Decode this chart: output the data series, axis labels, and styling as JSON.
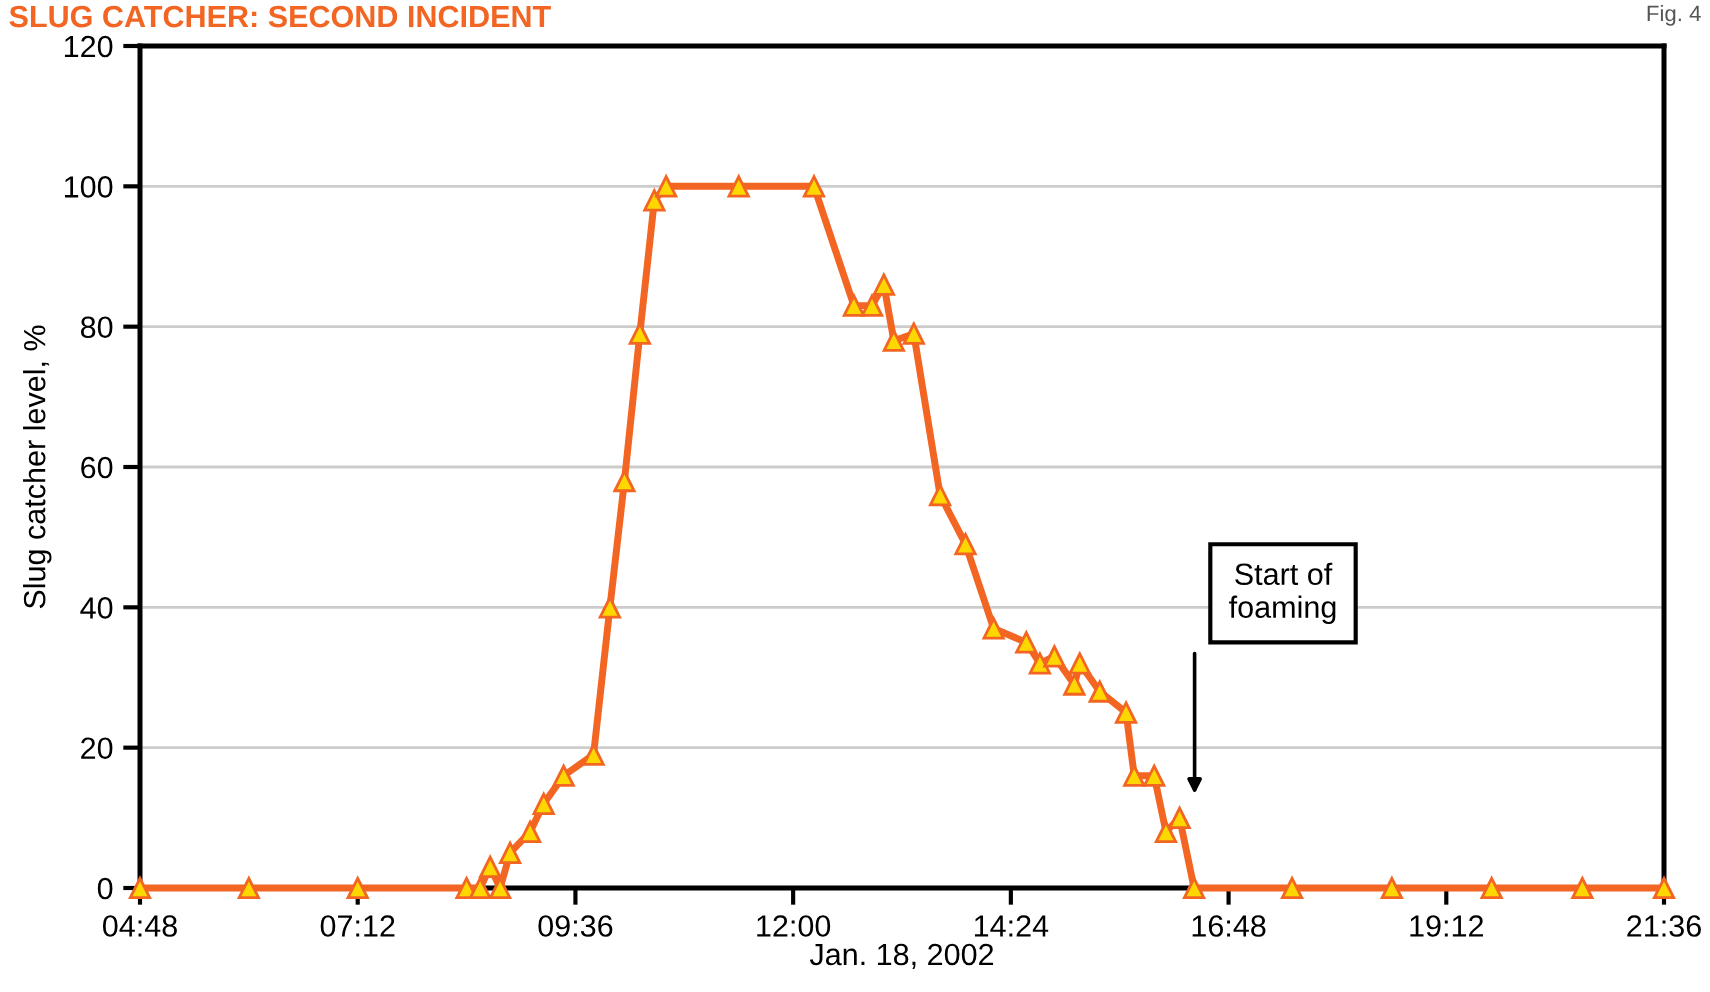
{
  "chart_data": {
    "type": "line",
    "title": "SLUG CATCHER: SECOND INCIDENT",
    "subtitle": "Fig. 4",
    "xlabel": "Jan. 18, 2002",
    "ylabel": "Slug catcher level, %",
    "annotations": [
      "Start of\nfoaming"
    ],
    "series": [
      {
        "color": "#f26522",
        "x": [
          4.8,
          6.0,
          7.2,
          8.4,
          8.55,
          8.66,
          8.77,
          8.88,
          9.1,
          9.25,
          9.47,
          9.8,
          9.98,
          10.14,
          10.31,
          10.47,
          10.6,
          11.4,
          12.23,
          12.67,
          12.87,
          13.0,
          13.11,
          13.33,
          13.62,
          13.9,
          14.21,
          14.57,
          14.72,
          14.88,
          15.1,
          15.16,
          15.38,
          15.67,
          15.76,
          15.98,
          16.11,
          16.26,
          16.42,
          17.5,
          18.6,
          19.7,
          20.7,
          21.6
        ],
        "values": [
          0,
          0,
          0,
          0,
          0,
          3,
          0,
          5,
          8,
          12,
          16,
          19,
          40,
          58,
          79,
          98,
          100,
          100,
          100,
          83,
          83,
          86,
          78,
          79,
          56,
          49,
          37,
          35,
          32,
          33,
          29,
          32,
          28,
          25,
          16,
          16,
          8,
          10,
          0,
          0,
          0,
          0,
          0,
          0
        ]
      }
    ],
    "marker": "triangle",
    "line_style": "solid",
    "xlim": [
      4.8,
      21.6
    ],
    "xticks": [
      {
        "value": 4.8,
        "label": "04:48"
      },
      {
        "value": 7.2,
        "label": "07:12"
      },
      {
        "value": 9.6,
        "label": "09:36"
      },
      {
        "value": 12.0,
        "label": "12:00"
      },
      {
        "value": 14.4,
        "label": "14:24"
      },
      {
        "value": 16.8,
        "label": "16:48"
      },
      {
        "value": 19.2,
        "label": "19:12"
      },
      {
        "value": 21.6,
        "label": "21:36"
      }
    ],
    "ylim": [
      0,
      120
    ],
    "yticks": [
      0,
      20,
      40,
      60,
      80,
      100,
      120
    ],
    "grid": "y",
    "legend": false
  }
}
